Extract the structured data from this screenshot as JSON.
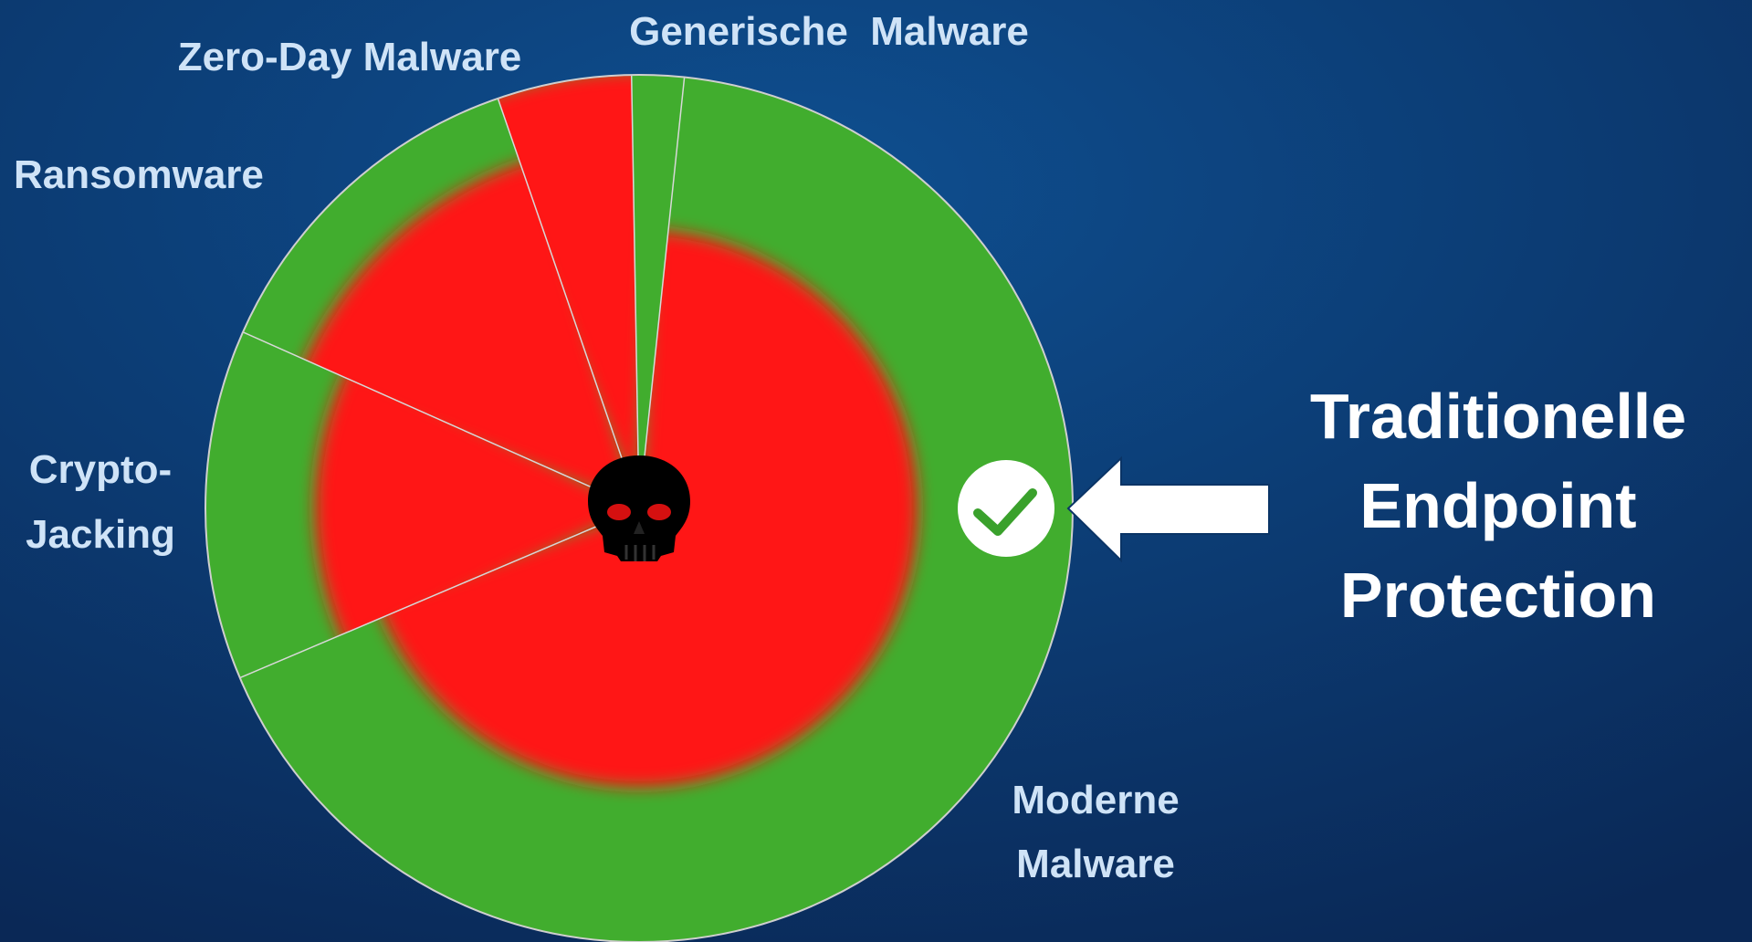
{
  "segments": [
    {
      "label_lines": [
        "Generische  Malware"
      ]
    },
    {
      "label_lines": [
        "Moderne",
        "Malware"
      ]
    },
    {
      "label_lines": [
        "Crypto-",
        "Jacking"
      ]
    },
    {
      "label_lines": [
        "Ransomware"
      ]
    },
    {
      "label_lines": [
        "Zero-Day Malware"
      ]
    }
  ],
  "title_lines": [
    "Traditionelle",
    "Endpoint",
    "Protection"
  ]
}
